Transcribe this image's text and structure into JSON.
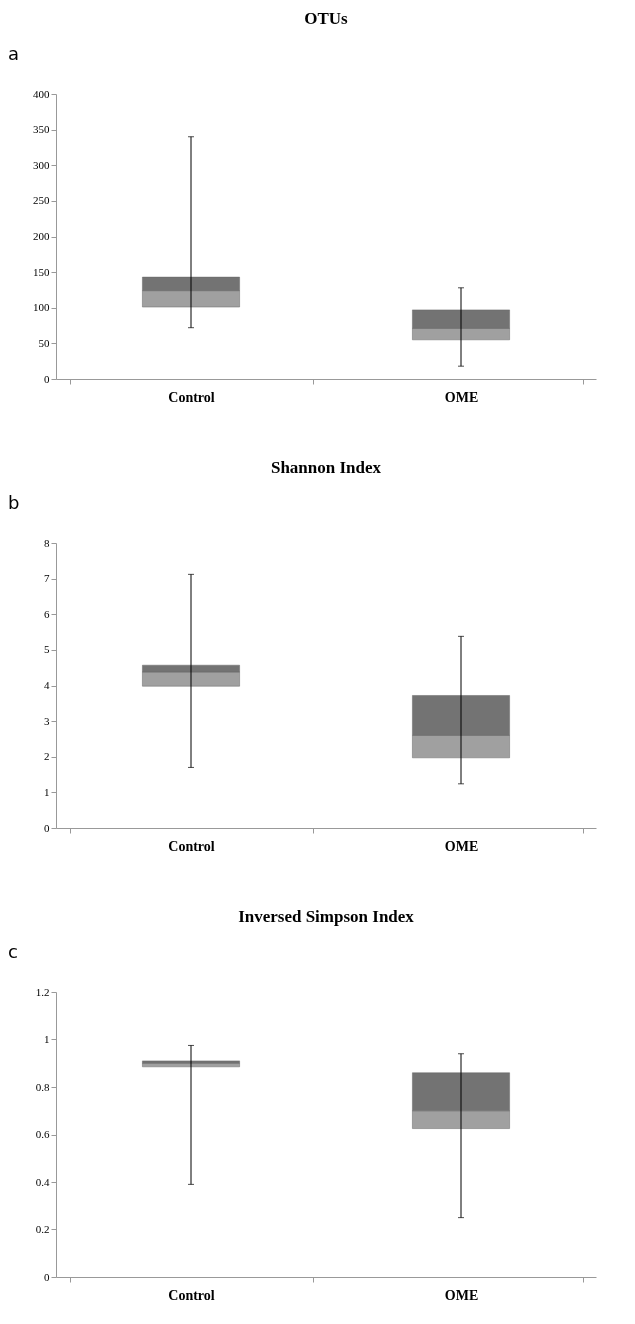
{
  "chart_data": [
    {
      "type": "box",
      "title": "OTUs",
      "annotations": [
        "a"
      ],
      "categories": [
        "Control",
        "OME"
      ],
      "colors": [
        "#a0a0a0",
        "#737373"
      ],
      "ylim": [
        0,
        400
      ],
      "yticks": [
        0,
        50,
        100,
        150,
        200,
        250,
        300,
        350,
        400
      ],
      "grid": false,
      "boxes": [
        {
          "low": 72,
          "q1": 101,
          "median": 124,
          "q3": 143,
          "high": 340
        },
        {
          "low": 18,
          "q1": 55,
          "median": 71,
          "q3": 97,
          "high": 128
        }
      ]
    },
    {
      "type": "box",
      "title": "Shannon Index",
      "annotations": [
        "b"
      ],
      "categories": [
        "Control",
        "OME"
      ],
      "colors": [
        "#a0a0a0",
        "#737373"
      ],
      "ylim": [
        0,
        8
      ],
      "yticks": [
        0,
        1,
        2,
        3,
        4,
        5,
        6,
        7,
        8
      ],
      "grid": false,
      "boxes": [
        {
          "low": 1.7,
          "q1": 3.98,
          "median": 4.38,
          "q3": 4.57,
          "high": 7.12
        },
        {
          "low": 1.24,
          "q1": 1.97,
          "median": 2.6,
          "q3": 3.72,
          "high": 5.38
        }
      ]
    },
    {
      "type": "box",
      "title": "Inversed Simpson Index",
      "annotations": [
        "c"
      ],
      "categories": [
        "Control",
        "OME"
      ],
      "colors": [
        "#a0a0a0",
        "#737373"
      ],
      "ylim": [
        0,
        1.2
      ],
      "yticks": [
        0,
        0.2,
        0.4,
        0.6,
        0.8,
        1,
        1.2
      ],
      "grid": false,
      "boxes": [
        {
          "low": 0.39,
          "q1": 0.885,
          "median": 0.9,
          "q3": 0.91,
          "high": 0.975
        },
        {
          "low": 0.25,
          "q1": 0.625,
          "median": 0.7,
          "q3": 0.86,
          "high": 0.94
        }
      ]
    }
  ]
}
